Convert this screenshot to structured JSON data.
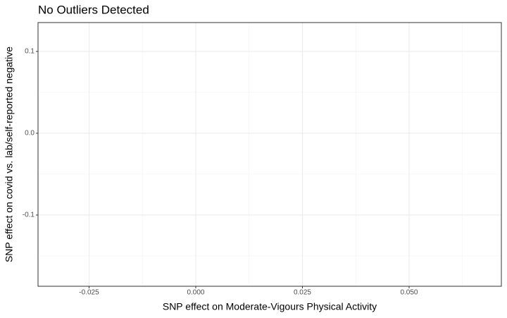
{
  "chart_data": {
    "type": "scatter",
    "title": "No Outliers Detected",
    "x_label": "SNP effect on Moderate-Vigours Physical Activity",
    "y_label": "SNP effect on covid vs. lab/self-reported negative",
    "xlim": [
      -0.03696,
      0.07162
    ],
    "ylim": [
      -0.1871,
      0.1353
    ],
    "xticks": [
      {
        "value": -0.025,
        "label": "-0.025"
      },
      {
        "value": 0,
        "label": "0.000"
      },
      {
        "value": 0.025,
        "label": "0.025"
      },
      {
        "value": 0.05,
        "label": "0.050"
      }
    ],
    "yticks": [
      -0.1,
      {
        "value": 0,
        "label": "0.0"
      },
      0.1
    ],
    "grid": true
  }
}
